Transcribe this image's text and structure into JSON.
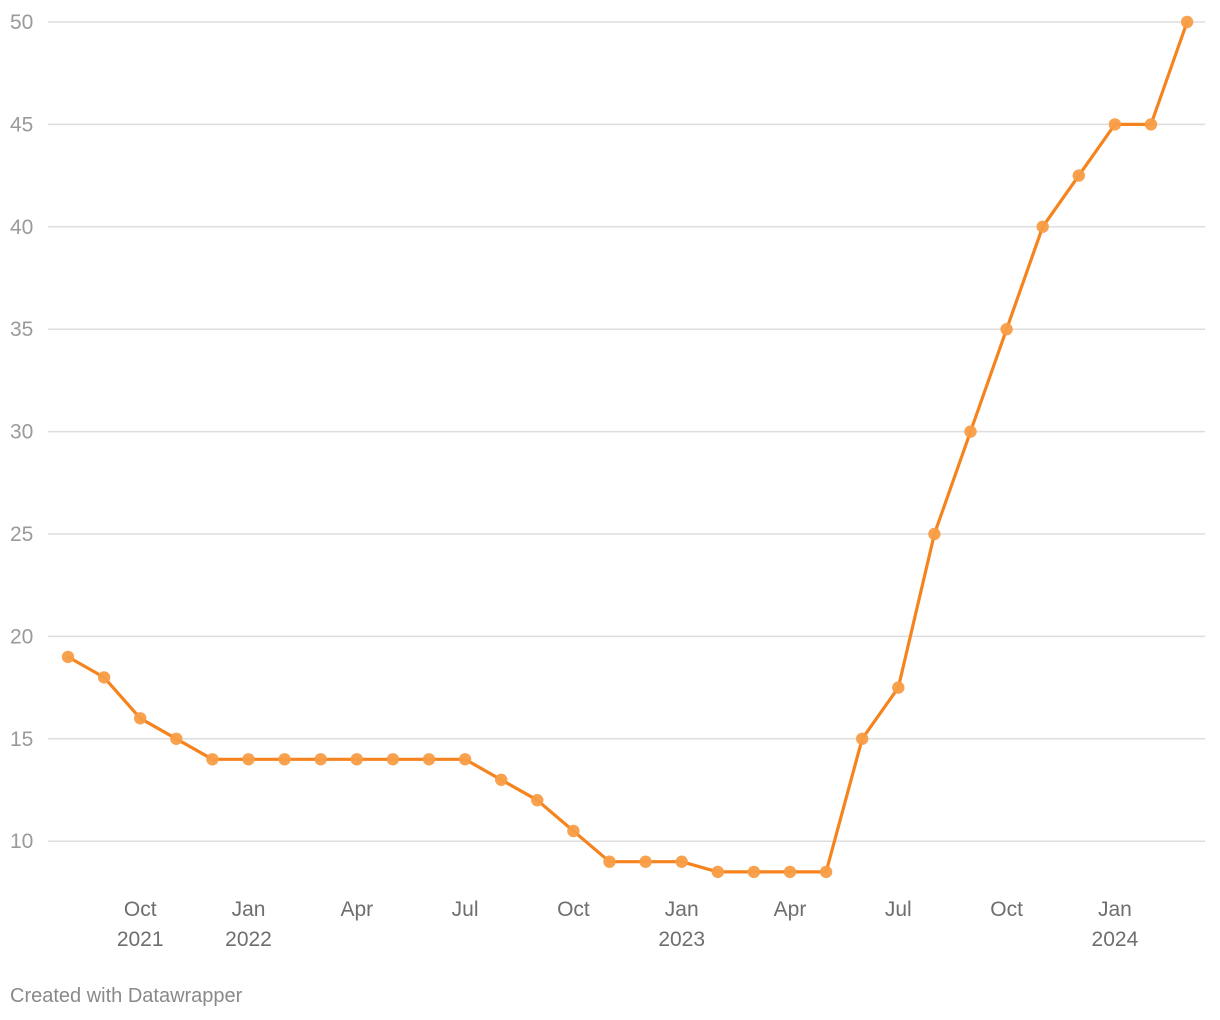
{
  "chart_data": {
    "type": "line",
    "title": "",
    "xlabel": "",
    "ylabel": "",
    "ylim": [
      8,
      50
    ],
    "yticks": [
      10,
      15,
      20,
      25,
      30,
      35,
      40,
      45,
      50
    ],
    "grid": true,
    "x_tick_labels": [
      {
        "month": "Oct",
        "year": "2021"
      },
      {
        "month": "Jan",
        "year": "2022"
      },
      {
        "month": "Apr",
        "year": ""
      },
      {
        "month": "Jul",
        "year": ""
      },
      {
        "month": "Oct",
        "year": ""
      },
      {
        "month": "Jan",
        "year": "2023"
      },
      {
        "month": "Apr",
        "year": ""
      },
      {
        "month": "Jul",
        "year": ""
      },
      {
        "month": "Oct",
        "year": ""
      },
      {
        "month": "Jan",
        "year": "2024"
      }
    ],
    "series": [
      {
        "color": "#f5841f",
        "marker_color": "#f89d47",
        "points": [
          {
            "x": "2021-08",
            "y": 19
          },
          {
            "x": "2021-09",
            "y": 18
          },
          {
            "x": "2021-10",
            "y": 16
          },
          {
            "x": "2021-11",
            "y": 15
          },
          {
            "x": "2021-12",
            "y": 14
          },
          {
            "x": "2022-01",
            "y": 14
          },
          {
            "x": "2022-02",
            "y": 14
          },
          {
            "x": "2022-03",
            "y": 14
          },
          {
            "x": "2022-04",
            "y": 14
          },
          {
            "x": "2022-05",
            "y": 14
          },
          {
            "x": "2022-06",
            "y": 14
          },
          {
            "x": "2022-07",
            "y": 14
          },
          {
            "x": "2022-08",
            "y": 13
          },
          {
            "x": "2022-09",
            "y": 12
          },
          {
            "x": "2022-10",
            "y": 10.5
          },
          {
            "x": "2022-11",
            "y": 9
          },
          {
            "x": "2022-12",
            "y": 9
          },
          {
            "x": "2023-01",
            "y": 9
          },
          {
            "x": "2023-02",
            "y": 8.5
          },
          {
            "x": "2023-03",
            "y": 8.5
          },
          {
            "x": "2023-04",
            "y": 8.5
          },
          {
            "x": "2023-05",
            "y": 8.5
          },
          {
            "x": "2023-06",
            "y": 15
          },
          {
            "x": "2023-07",
            "y": 17.5
          },
          {
            "x": "2023-08",
            "y": 25
          },
          {
            "x": "2023-09",
            "y": 30
          },
          {
            "x": "2023-10",
            "y": 35
          },
          {
            "x": "2023-11",
            "y": 40
          },
          {
            "x": "2023-12",
            "y": 42.5
          },
          {
            "x": "2024-01",
            "y": 45
          },
          {
            "x": "2024-02",
            "y": 45
          },
          {
            "x": "2024-03",
            "y": 50
          }
        ]
      }
    ]
  },
  "footer": {
    "credit": "Created with Datawrapper"
  }
}
